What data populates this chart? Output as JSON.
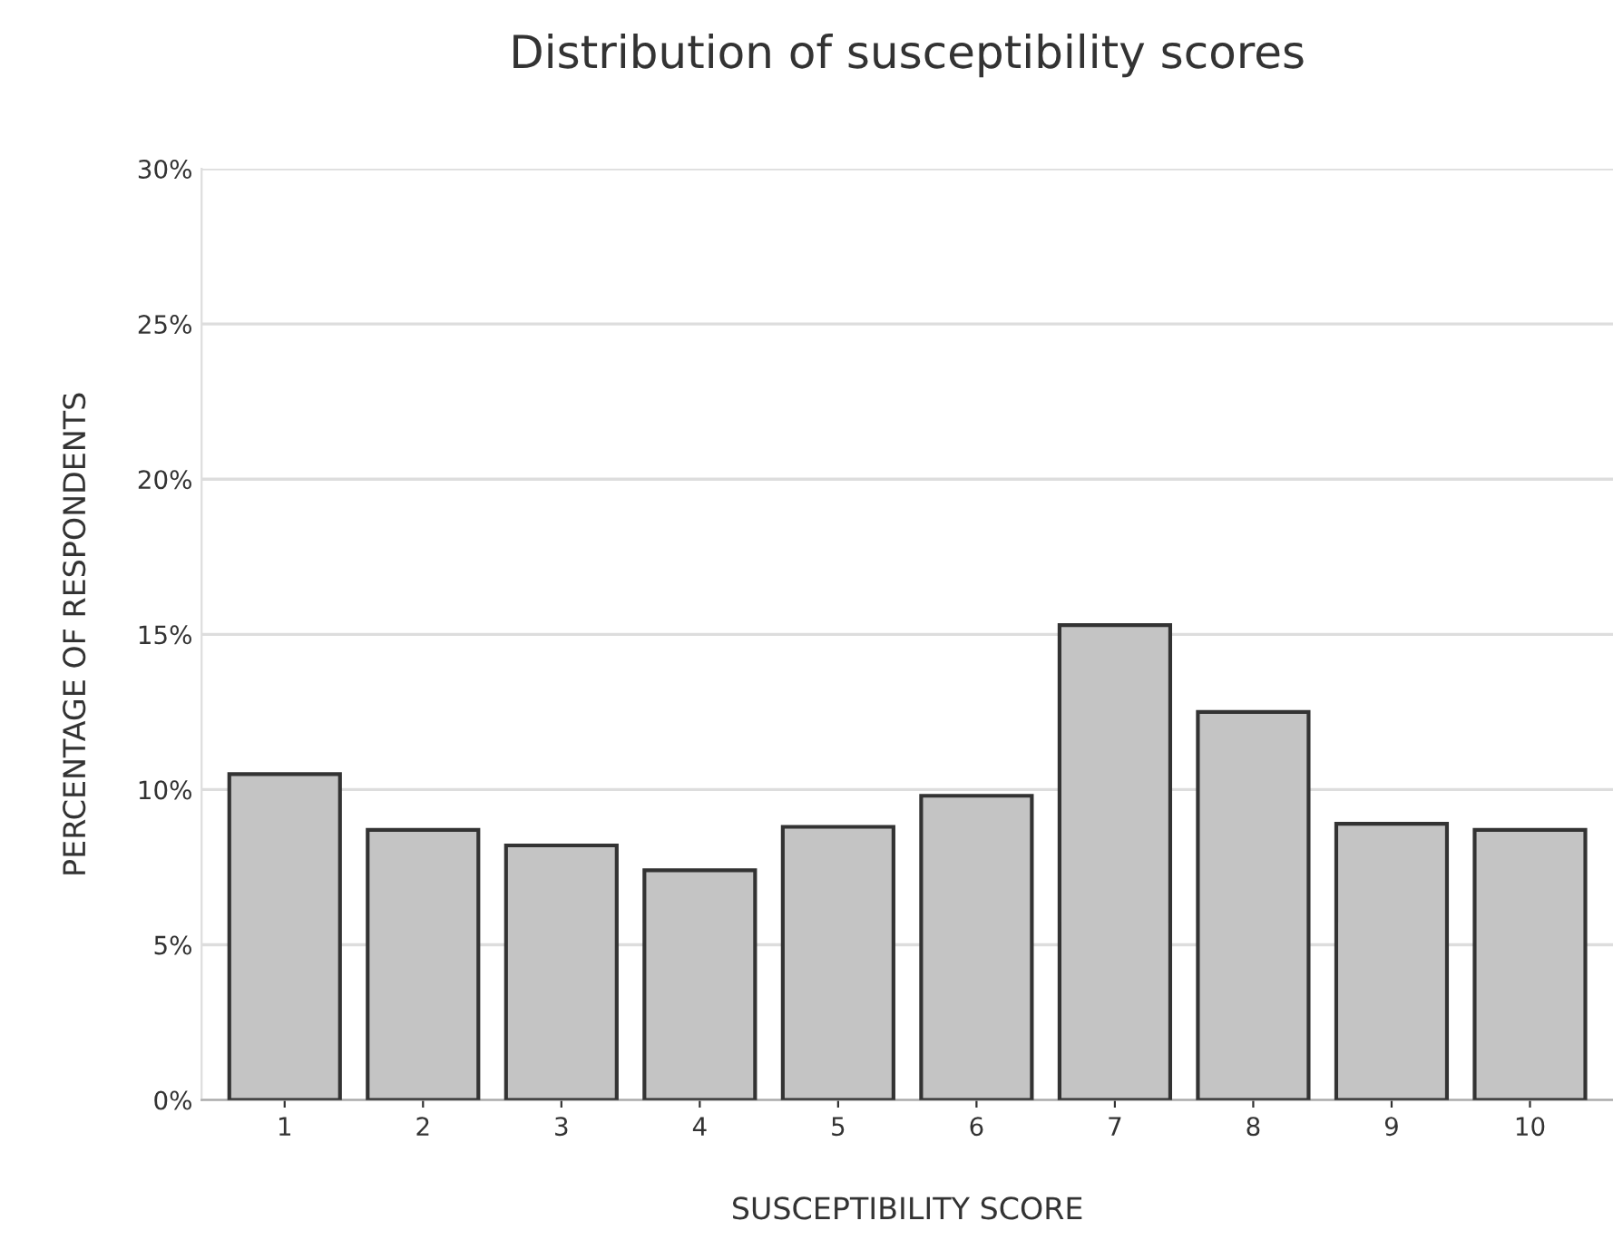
{
  "chart_data": {
    "type": "bar",
    "title": "Distribution of susceptibility scores",
    "xlabel": "SUSCEPTIBILITY SCORE",
    "ylabel": "PERCENTAGE OF RESPONDENTS",
    "categories": [
      "1",
      "2",
      "3",
      "4",
      "5",
      "6",
      "7",
      "8",
      "9",
      "10"
    ],
    "values": [
      10.5,
      8.7,
      8.2,
      7.4,
      8.8,
      9.8,
      15.3,
      12.5,
      8.9,
      8.7
    ],
    "color": "#c4c4c4",
    "ylim": [
      0,
      30
    ],
    "yticks": [
      {
        "value": 0,
        "label": "0%"
      },
      {
        "value": 5,
        "label": "5%"
      },
      {
        "value": 10,
        "label": "10%"
      },
      {
        "value": 15,
        "label": "15%"
      },
      {
        "value": 20,
        "label": "20%"
      },
      {
        "value": 25,
        "label": "25%"
      },
      {
        "value": 30,
        "label": "30%"
      }
    ],
    "grid": "y"
  }
}
